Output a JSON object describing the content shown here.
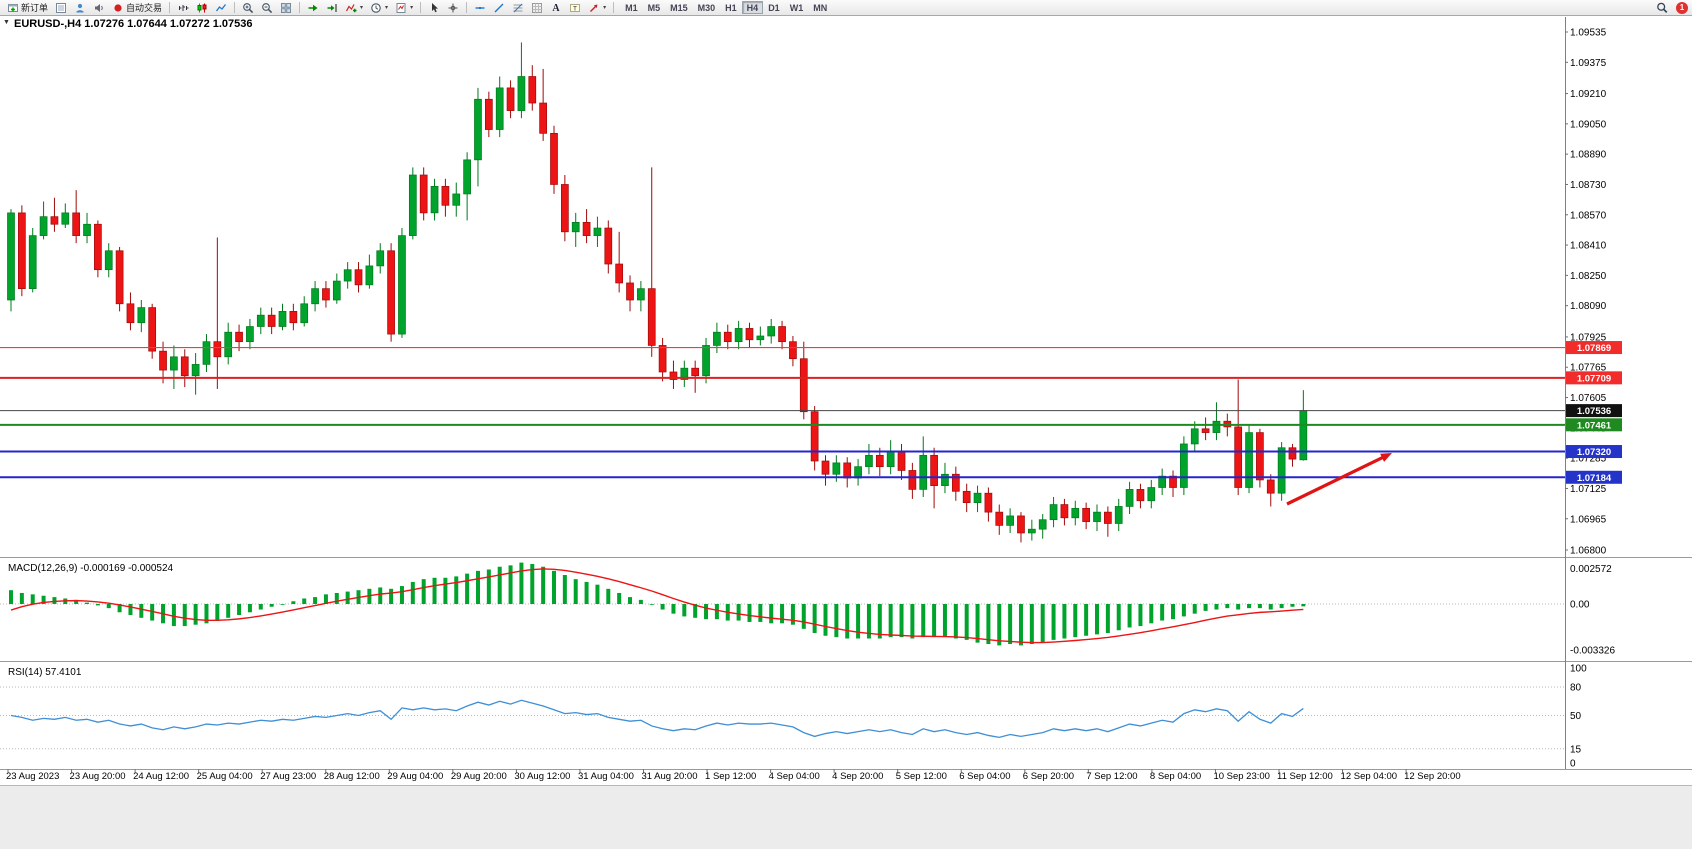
{
  "toolbar": {
    "buttons": [
      {
        "type": "button",
        "name": "new-order",
        "icon": "order",
        "label": "新订单"
      },
      {
        "type": "button",
        "name": "charts",
        "icon": "market"
      },
      {
        "type": "button",
        "name": "community",
        "icon": "person"
      },
      {
        "type": "button",
        "name": "sounds",
        "icon": "sound"
      },
      {
        "type": "button",
        "name": "autotrading",
        "icon": "autotrade",
        "label": "自动交易"
      },
      {
        "type": "sep"
      },
      {
        "type": "button",
        "name": "bar-chart",
        "icon": "bars"
      },
      {
        "type": "button",
        "name": "candlestick-chart",
        "icon": "candles"
      },
      {
        "type": "button",
        "name": "line-chart",
        "icon": "linechart"
      },
      {
        "type": "sep"
      },
      {
        "type": "button",
        "name": "zoom-in",
        "icon": "zoomin"
      },
      {
        "type": "button",
        "name": "zoom-out",
        "icon": "zoomout"
      },
      {
        "type": "button",
        "name": "tile-windows",
        "icon": "tile"
      },
      {
        "type": "sep"
      },
      {
        "type": "button",
        "name": "auto-scroll",
        "icon": "autoscroll"
      },
      {
        "type": "button",
        "name": "chart-shift",
        "icon": "shift"
      },
      {
        "type": "button",
        "name": "indicators",
        "icon": "indicators",
        "caret": true
      },
      {
        "type": "button",
        "name": "periods",
        "icon": "clock",
        "caret": true
      },
      {
        "type": "button",
        "name": "templates",
        "icon": "template",
        "caret": true
      },
      {
        "type": "sep"
      },
      {
        "type": "button",
        "name": "cursor",
        "icon": "cursor"
      },
      {
        "type": "button",
        "name": "crosshair",
        "icon": "crosshair"
      },
      {
        "type": "sep"
      },
      {
        "type": "button",
        "name": "horizontal-line",
        "icon": "hline"
      },
      {
        "type": "button",
        "name": "trendline",
        "icon": "tline"
      },
      {
        "type": "button",
        "name": "fibonacci",
        "icon": "fibo"
      },
      {
        "type": "button",
        "name": "drawing-grid",
        "icon": "gridtool"
      },
      {
        "type": "button",
        "name": "text",
        "icon": "textA"
      },
      {
        "type": "button",
        "name": "label",
        "icon": "labelT"
      },
      {
        "type": "button",
        "name": "arrows",
        "icon": "arrowtool",
        "caret": true
      },
      {
        "type": "sep"
      },
      {
        "type": "timeframes"
      },
      {
        "type": "spacer"
      },
      {
        "type": "button",
        "name": "search",
        "icon": "search"
      },
      {
        "type": "notification",
        "label": "1"
      }
    ],
    "timeframes": {
      "items": [
        "M1",
        "M5",
        "M15",
        "M30",
        "H1",
        "H4",
        "D1",
        "W1",
        "MN"
      ],
      "active": "H4"
    }
  },
  "chart": {
    "title": "EURUSD-,H4",
    "ohlc_text": "1.07276 1.07644 1.07272 1.07536",
    "one_click_glyph": "▼"
  },
  "chart_data": {
    "type": "candlestick",
    "symbol": "EURUSD-",
    "period": "H4",
    "ohlc_current": {
      "open": 1.07276,
      "high": 1.07644,
      "low": 1.07272,
      "close": 1.07536
    },
    "price_axis_labels": [
      "1.09535",
      "1.09375",
      "1.09210",
      "1.09050",
      "1.08890",
      "1.08730",
      "1.08570",
      "1.08410",
      "1.08250",
      "1.08090",
      "1.07925",
      "1.07765",
      "1.07605",
      "1.07445",
      "1.07285",
      "1.07125",
      "1.06965",
      "1.06800"
    ],
    "candles": [
      [
        1.0812,
        1.086,
        1.0806,
        1.0858
      ],
      [
        1.0858,
        1.0862,
        1.0814,
        1.0818
      ],
      [
        1.0818,
        1.085,
        1.0816,
        1.0846
      ],
      [
        1.0846,
        1.0864,
        1.0844,
        1.0856
      ],
      [
        1.0856,
        1.0866,
        1.0848,
        1.0852
      ],
      [
        1.0852,
        1.0863,
        1.085,
        1.0858
      ],
      [
        1.0858,
        1.087,
        1.0842,
        1.0846
      ],
      [
        1.0846,
        1.0858,
        1.0842,
        1.0852
      ],
      [
        1.0852,
        1.0854,
        1.0824,
        1.0828
      ],
      [
        1.0828,
        1.0842,
        1.0824,
        1.0838
      ],
      [
        1.0838,
        1.084,
        1.0806,
        1.081
      ],
      [
        1.081,
        1.0816,
        1.0796,
        1.08
      ],
      [
        1.08,
        1.0812,
        1.0795,
        1.0808
      ],
      [
        1.0808,
        1.081,
        1.0781,
        1.0785
      ],
      [
        1.0785,
        1.079,
        1.0768,
        1.0775
      ],
      [
        1.0775,
        1.0788,
        1.0765,
        1.0782
      ],
      [
        1.0782,
        1.0786,
        1.0766,
        1.0772
      ],
      [
        1.0772,
        1.0784,
        1.0762,
        1.0778
      ],
      [
        1.0778,
        1.0794,
        1.0774,
        1.079
      ],
      [
        1.079,
        1.0845,
        1.0765,
        1.0782
      ],
      [
        1.0782,
        1.08,
        1.0778,
        1.0795
      ],
      [
        1.0795,
        1.0799,
        1.0785,
        1.079
      ],
      [
        1.079,
        1.0802,
        1.0786,
        1.0798
      ],
      [
        1.0798,
        1.0808,
        1.0794,
        1.0804
      ],
      [
        1.0804,
        1.0808,
        1.0794,
        1.0798
      ],
      [
        1.0798,
        1.081,
        1.0796,
        1.0806
      ],
      [
        1.0806,
        1.081,
        1.0796,
        1.08
      ],
      [
        1.08,
        1.0814,
        1.0798,
        1.081
      ],
      [
        1.081,
        1.0822,
        1.0806,
        1.0818
      ],
      [
        1.0818,
        1.0822,
        1.0808,
        1.0812
      ],
      [
        1.0812,
        1.0826,
        1.081,
        1.0822
      ],
      [
        1.0822,
        1.0832,
        1.0818,
        1.0828
      ],
      [
        1.0828,
        1.0832,
        1.0816,
        1.082
      ],
      [
        1.082,
        1.0836,
        1.0818,
        1.083
      ],
      [
        1.083,
        1.0842,
        1.0826,
        1.0838
      ],
      [
        1.0838,
        1.0842,
        1.079,
        1.0794
      ],
      [
        1.0794,
        1.085,
        1.0792,
        1.0846
      ],
      [
        1.0846,
        1.0882,
        1.0844,
        1.0878
      ],
      [
        1.0878,
        1.0882,
        1.0854,
        1.0858
      ],
      [
        1.0858,
        1.0876,
        1.0854,
        1.0872
      ],
      [
        1.0872,
        1.0876,
        1.0856,
        1.0862
      ],
      [
        1.0862,
        1.0874,
        1.0856,
        1.0868
      ],
      [
        1.0868,
        1.089,
        1.0854,
        1.0886
      ],
      [
        1.0886,
        1.0924,
        1.0872,
        1.0918
      ],
      [
        1.0918,
        1.0922,
        1.0898,
        1.0902
      ],
      [
        1.0902,
        1.093,
        1.0898,
        1.0924
      ],
      [
        1.0924,
        1.0928,
        1.0908,
        1.0912
      ],
      [
        1.0912,
        1.0948,
        1.0908,
        1.093
      ],
      [
        1.093,
        1.0936,
        1.0912,
        1.0916
      ],
      [
        1.0916,
        1.0934,
        1.0896,
        1.09
      ],
      [
        1.09,
        1.0904,
        1.0868,
        1.0873
      ],
      [
        1.0873,
        1.0878,
        1.0843,
        1.0848
      ],
      [
        1.0848,
        1.0858,
        1.084,
        1.0853
      ],
      [
        1.0853,
        1.086,
        1.0842,
        1.0846
      ],
      [
        1.0846,
        1.0856,
        1.084,
        1.085
      ],
      [
        1.085,
        1.0854,
        1.0826,
        1.0831
      ],
      [
        1.0831,
        1.0848,
        1.0816,
        1.0821
      ],
      [
        1.0821,
        1.0825,
        1.0806,
        1.0812
      ],
      [
        1.0812,
        1.0822,
        1.0806,
        1.0818
      ],
      [
        1.0818,
        1.0882,
        1.0782,
        1.0788
      ],
      [
        1.0788,
        1.0792,
        1.0769,
        1.0774
      ],
      [
        1.0774,
        1.078,
        1.0765,
        1.077
      ],
      [
        1.077,
        1.078,
        1.0766,
        1.0776
      ],
      [
        1.0776,
        1.078,
        1.0763,
        1.0772
      ],
      [
        1.0772,
        1.0792,
        1.0768,
        1.0788
      ],
      [
        1.0788,
        1.08,
        1.0784,
        1.0795
      ],
      [
        1.0795,
        1.0799,
        1.0786,
        1.079
      ],
      [
        1.079,
        1.0801,
        1.0786,
        1.0797
      ],
      [
        1.0797,
        1.08,
        1.0787,
        1.0791
      ],
      [
        1.0791,
        1.0798,
        1.0788,
        1.0793
      ],
      [
        1.0793,
        1.0802,
        1.0789,
        1.0798
      ],
      [
        1.0798,
        1.0801,
        1.0786,
        1.079
      ],
      [
        1.079,
        1.0793,
        1.0777,
        1.0781
      ],
      [
        1.0781,
        1.079,
        1.0749,
        1.0753
      ],
      [
        1.0753,
        1.0756,
        1.0722,
        1.0727
      ],
      [
        1.0727,
        1.073,
        1.0714,
        1.072
      ],
      [
        1.072,
        1.073,
        1.0716,
        1.0726
      ],
      [
        1.0726,
        1.0729,
        1.0713,
        1.0718
      ],
      [
        1.0718,
        1.0728,
        1.0714,
        1.0724
      ],
      [
        1.0724,
        1.0736,
        1.072,
        1.073
      ],
      [
        1.073,
        1.0734,
        1.0719,
        1.0724
      ],
      [
        1.0724,
        1.0738,
        1.072,
        1.0732
      ],
      [
        1.0732,
        1.0736,
        1.0717,
        1.0722
      ],
      [
        1.0722,
        1.0726,
        1.0707,
        1.0712
      ],
      [
        1.0712,
        1.074,
        1.0708,
        1.073
      ],
      [
        1.073,
        1.0734,
        1.0702,
        1.0714
      ],
      [
        1.0714,
        1.0726,
        1.071,
        1.072
      ],
      [
        1.072,
        1.0724,
        1.0706,
        1.0711
      ],
      [
        1.0711,
        1.0715,
        1.07,
        1.0705
      ],
      [
        1.0705,
        1.0714,
        1.07,
        1.071
      ],
      [
        1.071,
        1.0713,
        1.0695,
        1.07
      ],
      [
        1.07,
        1.0704,
        1.0688,
        1.0693
      ],
      [
        1.0693,
        1.0702,
        1.0689,
        1.0698
      ],
      [
        1.0698,
        1.07,
        1.0684,
        1.0689
      ],
      [
        1.0689,
        1.0696,
        1.0685,
        1.0691
      ],
      [
        1.0691,
        1.0699,
        1.0686,
        1.0696
      ],
      [
        1.0696,
        1.0708,
        1.0692,
        1.0704
      ],
      [
        1.0704,
        1.0707,
        1.0693,
        1.0697
      ],
      [
        1.0697,
        1.0706,
        1.0693,
        1.0702
      ],
      [
        1.0702,
        1.0705,
        1.0691,
        1.0695
      ],
      [
        1.0695,
        1.0704,
        1.069,
        1.07
      ],
      [
        1.07,
        1.0703,
        1.0687,
        1.0694
      ],
      [
        1.0694,
        1.0707,
        1.069,
        1.0703
      ],
      [
        1.0703,
        1.0716,
        1.0699,
        1.0712
      ],
      [
        1.0712,
        1.0715,
        1.0702,
        1.0706
      ],
      [
        1.0706,
        1.0717,
        1.0702,
        1.0713
      ],
      [
        1.0713,
        1.0723,
        1.0709,
        1.0719
      ],
      [
        1.0719,
        1.0722,
        1.0708,
        1.0713
      ],
      [
        1.0713,
        1.074,
        1.0709,
        1.0736
      ],
      [
        1.0736,
        1.0748,
        1.0732,
        1.0744
      ],
      [
        1.0744,
        1.075,
        1.0738,
        1.0742
      ],
      [
        1.0742,
        1.0758,
        1.0738,
        1.0748
      ],
      [
        1.0748,
        1.0752,
        1.074,
        1.0745
      ],
      [
        1.0745,
        1.077,
        1.0709,
        1.0713
      ],
      [
        1.0713,
        1.0746,
        1.071,
        1.0742
      ],
      [
        1.0742,
        1.0744,
        1.0713,
        1.0717
      ],
      [
        1.0717,
        1.072,
        1.0703,
        1.071
      ],
      [
        1.071,
        1.0737,
        1.0706,
        1.0734
      ],
      [
        1.0734,
        1.0736,
        1.0724,
        1.0728
      ],
      [
        1.07276,
        1.07644,
        1.07272,
        1.07536
      ]
    ],
    "price_lines": [
      {
        "name": "resistance-line-upper",
        "label": "1.07869",
        "value": 1.07869,
        "color": "#F23B3B",
        "width": 1.2,
        "badge": "#F22B2B"
      },
      {
        "name": "resistance-line-lower",
        "label": "1.07709",
        "value": 1.07709,
        "color": "#E02020",
        "width": 2,
        "badge": "#F22B2B"
      },
      {
        "name": "current-price-line",
        "label": "1.07536",
        "value": 1.07536,
        "color": "#444444",
        "width": 1,
        "badge": "#111111"
      },
      {
        "name": "support-line-green",
        "label": "1.07461",
        "value": 1.07461,
        "color": "#1F8A1F",
        "width": 2,
        "badge": "#1F8A1F"
      },
      {
        "name": "support-line-blue-upper",
        "label": "1.07320",
        "value": 1.0732,
        "color": "#2525CF",
        "width": 2,
        "badge": "#2433C8"
      },
      {
        "name": "support-line-blue-lower",
        "label": "1.07184",
        "value": 1.07184,
        "color": "#2525CF",
        "width": 2,
        "badge": "#2433C8"
      }
    ],
    "macd": {
      "label": "MACD(12,26,9)",
      "values_text": "-0.000169 -0.000524",
      "axis_labels": [
        "0.002572",
        "0.00",
        "-0.003326"
      ],
      "signal_period": 9,
      "signal_seed": -0.0008,
      "main": [
        0.001,
        0.0008,
        0.0007,
        0.0006,
        0.0005,
        0.0004,
        0.0003,
        0.0001,
        -0.0001,
        -0.0003,
        -0.0006,
        -0.0008,
        -0.001,
        -0.0012,
        -0.0014,
        -0.0016,
        -0.0016,
        -0.0015,
        -0.0014,
        -0.0012,
        -0.001,
        -0.0008,
        -0.0006,
        -0.0004,
        -0.0002,
        0,
        0.0002,
        0.0004,
        0.0005,
        0.0007,
        0.0008,
        0.0009,
        0.001,
        0.0011,
        0.0012,
        0.0011,
        0.0013,
        0.0016,
        0.0018,
        0.0019,
        0.0019,
        0.002,
        0.0022,
        0.0024,
        0.0025,
        0.0027,
        0.0028,
        0.003,
        0.0029,
        0.0027,
        0.0024,
        0.0021,
        0.0018,
        0.0016,
        0.0014,
        0.0011,
        0.0008,
        0.0005,
        0.0003,
        0,
        -0.0004,
        -0.0007,
        -0.0009,
        -0.001,
        -0.0011,
        -0.0011,
        -0.0012,
        -0.0012,
        -0.0013,
        -0.0013,
        -0.0014,
        -0.0014,
        -0.0015,
        -0.0018,
        -0.0021,
        -0.0023,
        -0.0024,
        -0.0025,
        -0.0025,
        -0.0025,
        -0.0025,
        -0.0024,
        -0.0024,
        -0.0025,
        -0.0024,
        -0.0024,
        -0.0024,
        -0.0025,
        -0.0026,
        -0.0028,
        -0.0029,
        -0.003,
        -0.0029,
        -0.003,
        -0.0029,
        -0.0028,
        -0.0026,
        -0.0025,
        -0.0024,
        -0.0023,
        -0.0022,
        -0.0021,
        -0.0019,
        -0.0017,
        -0.0016,
        -0.0014,
        -0.0012,
        -0.0011,
        -0.0009,
        -0.0007,
        -0.0005,
        -0.0004,
        -0.0003,
        -0.0004,
        -0.0003,
        -0.0003,
        -0.0004,
        -0.0003,
        -0.0002,
        -0.000169
      ]
    },
    "rsi": {
      "label": "RSI(14)",
      "value_text": "57.4101",
      "levels": [
        80,
        50,
        15
      ],
      "axis_labels": [
        "100",
        "80",
        "50",
        "15",
        "0"
      ],
      "values": [
        50,
        48,
        45,
        47,
        46,
        48,
        45,
        46,
        43,
        45,
        41,
        39,
        41,
        37,
        35,
        38,
        36,
        38,
        41,
        40,
        42,
        41,
        43,
        45,
        44,
        46,
        45,
        47,
        49,
        48,
        50,
        52,
        50,
        53,
        55,
        46,
        58,
        56,
        58,
        56,
        57,
        55,
        60,
        64,
        61,
        65,
        62,
        66,
        63,
        60,
        56,
        52,
        53,
        51,
        52,
        48,
        46,
        44,
        45,
        39,
        36,
        34,
        36,
        35,
        39,
        42,
        40,
        42,
        41,
        41,
        42,
        40,
        38,
        32,
        28,
        31,
        33,
        31,
        33,
        35,
        33,
        35,
        32,
        30,
        36,
        33,
        35,
        32,
        30,
        32,
        29,
        27,
        30,
        28,
        30,
        32,
        36,
        34,
        36,
        34,
        36,
        33,
        37,
        41,
        39,
        42,
        45,
        43,
        52,
        56,
        54,
        57,
        55,
        44,
        54,
        46,
        42,
        52,
        49,
        57.4101
      ]
    },
    "time_labels": [
      "23 Aug 2023",
      "23 Aug 20:00",
      "24 Aug 12:00",
      "25 Aug 04:00",
      "27 Aug 23:00",
      "28 Aug 12:00",
      "29 Aug 04:00",
      "29 Aug 20:00",
      "30 Aug 12:00",
      "31 Aug 04:00",
      "31 Aug 20:00",
      "1 Sep 12:00",
      "4 Sep 04:00",
      "4 Sep 20:00",
      "5 Sep 12:00",
      "6 Sep 04:00",
      "6 Sep 20:00",
      "7 Sep 12:00",
      "8 Sep 04:00",
      "10 Sep 23:00",
      "11 Sep 12:00",
      "12 Sep 04:00",
      "12 Sep 20:00"
    ],
    "arrow": {
      "from": [
        1287,
        503
      ],
      "to": [
        1392,
        452
      ],
      "color": "#E01414"
    },
    "colors": {
      "up": "#00A32C",
      "up_edge": "#007A1C",
      "down": "#EC1414",
      "down_edge": "#A00A0A",
      "macd_hist": "#00A32C",
      "macd_signal": "#EC1414",
      "rsi": "#3E8FD6",
      "grid_dotted": "#B8B8B8",
      "axis_text": "#000000",
      "separator": "#9A9A9A"
    }
  }
}
